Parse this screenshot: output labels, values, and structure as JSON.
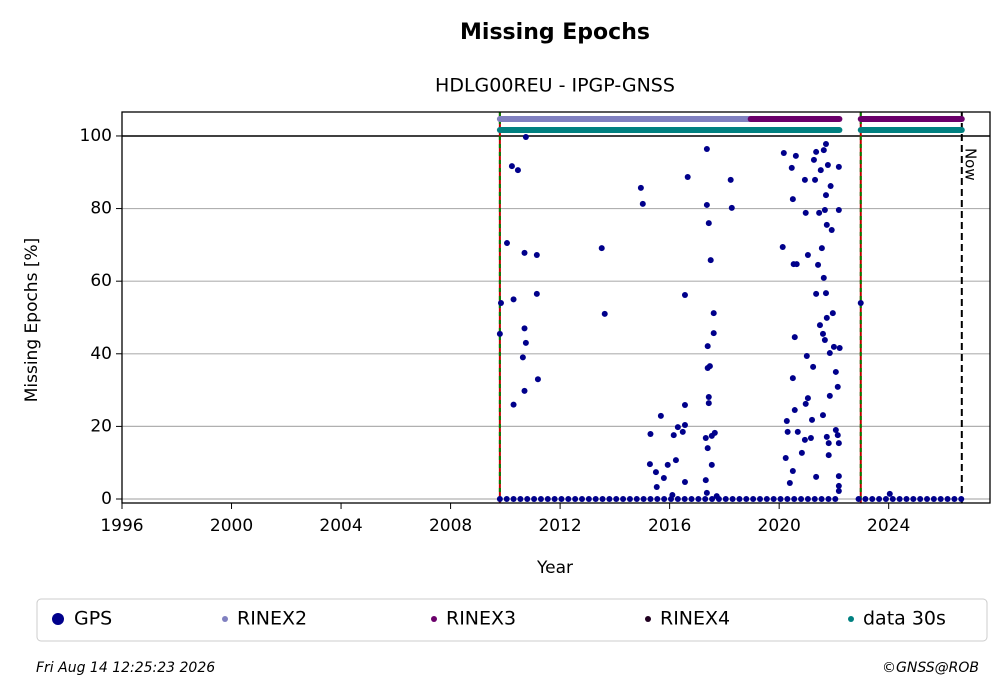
{
  "chart_data": {
    "type": "scatter",
    "title": "Missing Epochs",
    "subtitle": "HDLG00REU - IPGP-GNSS",
    "x_label": "Year",
    "y_label": "Missing Epochs [%]",
    "xlim": [
      1996,
      2027.7
    ],
    "ylim": [
      -1.1,
      106.6
    ],
    "xticks": [
      1996,
      2000,
      2004,
      2008,
      2012,
      2016,
      2020,
      2024
    ],
    "yticks": [
      0,
      20,
      40,
      60,
      80,
      100
    ],
    "grid": true,
    "sessions": [
      2009.8,
      2022.98
    ],
    "now": 2026.67,
    "now_label": "Now",
    "timestamp": "Fri Aug 14 12:25:23 2026",
    "credit": "©GNSS@ROB",
    "series": [
      {
        "name": "GPS",
        "color": "#00008b",
        "x": [
          2009.8,
          2010.05,
          2010.3,
          2010.55,
          2010.8,
          2011.05,
          2011.3,
          2011.55,
          2011.8,
          2012.05,
          2012.3,
          2012.55,
          2012.8,
          2013.05,
          2013.3,
          2013.55,
          2013.8,
          2014.05,
          2014.3,
          2014.55,
          2014.8,
          2015.05,
          2015.3,
          2015.55,
          2015.8,
          2016.05,
          2016.3,
          2016.55,
          2016.8,
          2017.05,
          2017.3,
          2017.55,
          2017.8,
          2018.05,
          2018.3,
          2018.55,
          2018.8,
          2019.05,
          2019.3,
          2019.55,
          2019.8,
          2020.05,
          2020.3,
          2020.55,
          2020.8,
          2021.05,
          2021.3,
          2021.55,
          2021.8,
          2022.05,
          2022.9,
          2023.15,
          2023.4,
          2023.65,
          2023.9,
          2024.15,
          2024.4,
          2024.65,
          2024.9,
          2025.15,
          2025.4,
          2025.65,
          2025.9,
          2026.15,
          2026.4,
          2026.65,
          2009.8,
          2009.84,
          2010.06,
          2010.24,
          2010.46,
          2010.3,
          2010.3,
          2010.64,
          2010.7,
          2010.75,
          2010.7,
          2010.7,
          2010.75,
          2011.15,
          2011.15,
          2011.19,
          2013.52,
          2013.63,
          2014.95,
          2015.02,
          2015.3,
          2015.28,
          2015.5,
          2015.53,
          2015.68,
          2015.79,
          2015.93,
          2016.15,
          2016.23,
          2016.3,
          2016.48,
          2016.56,
          2016.56,
          2016.56,
          2016.66,
          2016.56,
          2016.1,
          2017.36,
          2017.36,
          2017.43,
          2017.5,
          2017.61,
          2017.61,
          2017.39,
          2017.39,
          2017.47,
          2017.43,
          2017.43,
          2017.32,
          2017.39,
          2017.54,
          2017.65,
          2017.54,
          2017.32,
          2017.36,
          2017.72,
          2018.23,
          2018.27,
          2020.17,
          2020.13,
          2020.46,
          2020.5,
          2020.61,
          2020.53,
          2020.64,
          2020.57,
          2020.5,
          2020.57,
          2020.24,
          2020.31,
          2020.28,
          2020.39,
          2020.5,
          2020.68,
          2020.94,
          2020.97,
          2021.05,
          2021.01,
          2021.05,
          2020.97,
          2020.94,
          2020.83,
          2021.16,
          2021.24,
          2021.2,
          2021.35,
          2021.35,
          2021.31,
          2021.27,
          2021.35,
          2021.42,
          2021.46,
          2021.52,
          2021.56,
          2021.49,
          2021.6,
          2021.63,
          2021.71,
          2021.78,
          2021.71,
          2021.67,
          2021.74,
          2021.63,
          2021.71,
          2021.6,
          2021.67,
          2021.74,
          2021.74,
          2021.81,
          2021.81,
          2021.85,
          2021.85,
          2021.88,
          2021.92,
          2021.96,
          2022.0,
          2022.07,
          2022.14,
          2022.07,
          2022.14,
          2022.18,
          2022.18,
          2022.18,
          2022.21,
          2022.18,
          2022.18,
          2022.18,
          2022.98,
          2024.04
        ],
        "values": [
          0,
          0,
          0,
          0,
          0,
          0,
          0,
          0,
          0,
          0,
          0,
          0,
          0,
          0,
          0,
          0,
          0,
          0,
          0,
          0,
          0,
          0,
          0,
          0,
          0,
          0,
          0,
          0,
          0,
          0,
          0,
          0,
          0,
          0,
          0,
          0,
          0,
          0,
          0,
          0,
          0,
          0,
          0,
          0,
          0,
          0,
          0,
          0,
          0,
          0,
          0,
          0,
          0,
          0,
          0,
          0,
          0,
          0,
          0,
          0,
          0,
          0,
          0,
          0,
          0,
          0,
          45.5,
          54,
          70.5,
          91.7,
          90.6,
          55,
          26,
          39,
          47,
          43,
          67.8,
          29.8,
          99.7,
          67.2,
          56.5,
          33,
          69.1,
          51,
          85.7,
          81.3,
          17.9,
          9.6,
          7.4,
          3.3,
          22.9,
          5.8,
          9.4,
          17.6,
          10.7,
          19.8,
          18.5,
          20.4,
          25.9,
          56.2,
          88.7,
          4.7,
          1.1,
          96.4,
          81,
          76,
          65.8,
          51.2,
          45.7,
          42.1,
          36.1,
          36.6,
          26.4,
          28.1,
          16.8,
          14,
          17.4,
          18.2,
          9.4,
          5.2,
          1.7,
          0.8,
          87.9,
          80.2,
          95.3,
          69.4,
          91.2,
          82.6,
          94.5,
          64.7,
          64.7,
          44.6,
          33.3,
          24.5,
          11.3,
          18.5,
          21.5,
          4.4,
          7.7,
          18.5,
          87.9,
          78.8,
          67.2,
          39.4,
          27.8,
          26.2,
          16.3,
          12.7,
          16.8,
          36.4,
          21.8,
          6.1,
          56.5,
          87.9,
          93.4,
          95.6,
          64.5,
          78.8,
          90.6,
          69.1,
          47.9,
          23.1,
          96.1,
          97.8,
          92,
          83.7,
          79.6,
          75.5,
          60.9,
          56.7,
          45.5,
          43.8,
          49.9,
          17.1,
          15.4,
          12.1,
          28.4,
          40.2,
          86.2,
          74.1,
          51.2,
          41.9,
          35,
          30.9,
          19,
          17.6,
          15.4,
          79.6,
          91.5,
          41.6,
          6.3,
          3.6,
          2.2,
          54,
          1.4
        ]
      },
      {
        "name": "RINEX2",
        "color": "#8080c0",
        "segments": [
          [
            2009.8,
            2018.96
          ]
        ]
      },
      {
        "name": "RINEX3",
        "color": "#6b006b",
        "segments": [
          [
            2018.96,
            2022.2
          ],
          [
            2022.98,
            2026.67
          ]
        ]
      },
      {
        "name": "RINEX4",
        "color": "#200020",
        "segments": []
      },
      {
        "name": "data 30s",
        "color": "#008080",
        "segments": [
          [
            2009.8,
            2022.2
          ],
          [
            2022.98,
            2026.67
          ]
        ]
      }
    ]
  }
}
